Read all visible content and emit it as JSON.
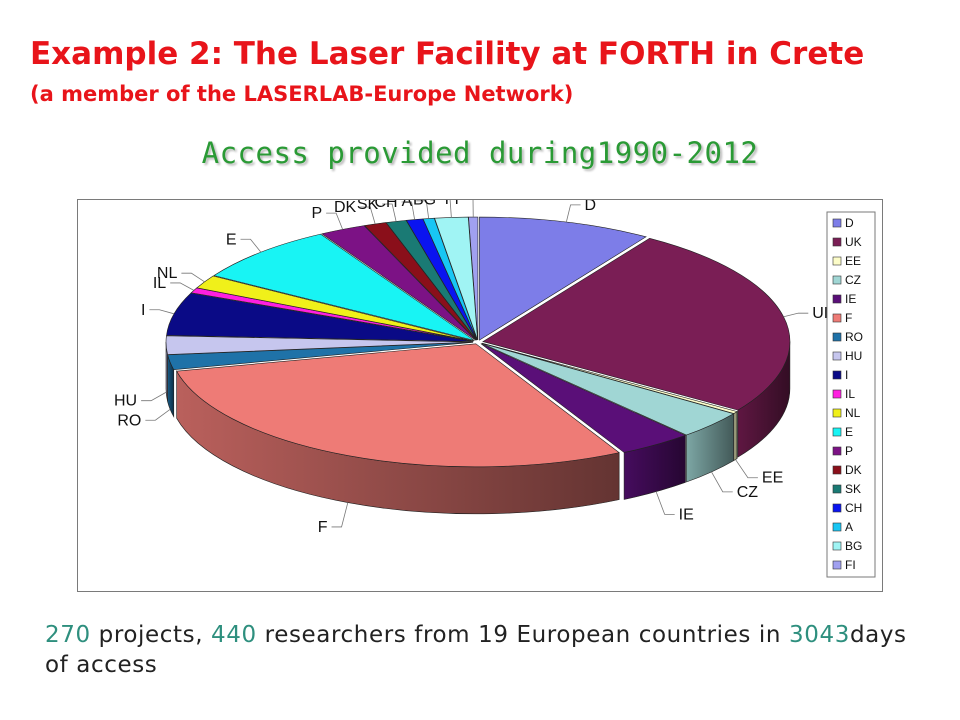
{
  "slide": {
    "title": "Example 2: The Laser Facility at FORTH in Crete",
    "subtitle": "(a member of the LASERLAB-Europe Network)"
  },
  "footnote": {
    "projects_count": "270",
    "projects_text": " projects, ",
    "researchers_count": "440",
    "researchers_text": " researchers from 19 European countries in ",
    "days_count": "3043",
    "days_text": "days of access"
  },
  "colors": {
    "title": "#e8141a",
    "chart_title": "#2a9a35",
    "footnote_numbers": "#2e8f7e"
  },
  "chart_data": {
    "type": "pie",
    "style": "3d-exploded",
    "title": "Access provided during1990-2012",
    "legend_position": "right",
    "categories": [
      "D",
      "UK",
      "EE",
      "CZ",
      "IE",
      "F",
      "RO",
      "HU",
      "I",
      "IL",
      "NL",
      "E",
      "P",
      "DK",
      "SK",
      "CH",
      "A",
      "BG",
      "FI"
    ],
    "values": [
      9.4,
      26.0,
      0.3,
      3.8,
      4.0,
      30.0,
      2.0,
      2.5,
      5.8,
      0.7,
      1.8,
      8.0,
      2.5,
      1.2,
      1.1,
      0.9,
      0.6,
      1.8,
      0.5
    ],
    "colors": [
      "#7d7de8",
      "#7a1e55",
      "#fcfcc8",
      "#a0d6d4",
      "#5a0f78",
      "#ee7b76",
      "#1f72a8",
      "#c6c6ee",
      "#0a0a86",
      "#ff20e0",
      "#f0f01a",
      "#18f4f4",
      "#7c1285",
      "#8a0f1a",
      "#1a7a74",
      "#0a14f0",
      "#18c6f4",
      "#a0f4f4",
      "#a0a0f0"
    ]
  }
}
